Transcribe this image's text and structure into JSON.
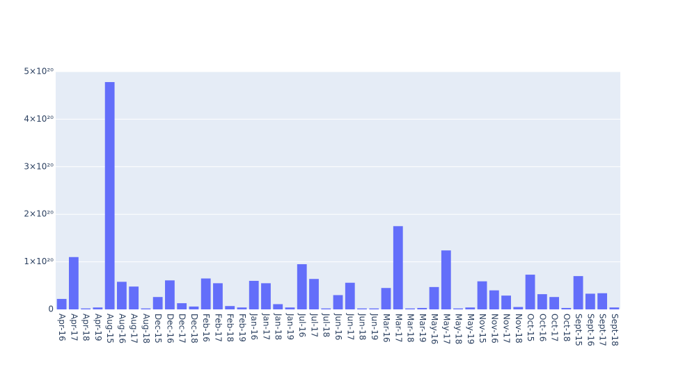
{
  "chart_data": {
    "type": "bar",
    "categories": [
      "Apr-16",
      "Apr-17",
      "Apr-18",
      "Apr-19",
      "Aug-15",
      "Aug-16",
      "Aug-17",
      "Aug-18",
      "Dec-15",
      "Dec-16",
      "Dec-17",
      "Dec-18",
      "Feb-16",
      "Feb-17",
      "Feb-18",
      "Feb-19",
      "Jan-16",
      "Jan-17",
      "Jan-18",
      "Jan-19",
      "Jul-16",
      "Jul-17",
      "Jul-18",
      "Jun-16",
      "Jun-17",
      "Jun-18",
      "Jun-19",
      "Mar-16",
      "Mar-17",
      "Mar-18",
      "Mar-19",
      "May-16",
      "May-17",
      "May-18",
      "May-19",
      "Nov-15",
      "Nov-16",
      "Nov-17",
      "Nov-18",
      "Oct-15",
      "Oct-16",
      "Oct-17",
      "Oct-18",
      "Sept-15",
      "Sept-16",
      "Sept-17",
      "Sept-18"
    ],
    "values": [
      2.2e+19,
      1.1e+20,
      2e+18,
      4e+18,
      4.78e+20,
      5.8e+19,
      4.8e+19,
      2e+18,
      2.6e+19,
      6.1e+19,
      1.3e+19,
      6e+18,
      6.5e+19,
      5.5e+19,
      7e+18,
      4e+18,
      6e+19,
      5.5e+19,
      1.1e+19,
      4e+18,
      9.5e+19,
      6.4e+19,
      2e+18,
      3e+19,
      5.6e+19,
      2e+18,
      2e+18,
      4.5e+19,
      1.75e+20,
      2e+18,
      3e+18,
      4.7e+19,
      1.24e+20,
      2e+18,
      4e+18,
      5.9e+19,
      4e+19,
      2.9e+19,
      5e+18,
      7.3e+19,
      3.2e+19,
      2.6e+19,
      3e+18,
      7e+19,
      3.3e+19,
      3.4e+19,
      4e+18
    ],
    "color": "#636efa",
    "ylim": [
      0,
      5e+20
    ],
    "yticks": [
      0,
      {
        "value": 1e+20,
        "label": "1×10²⁰"
      },
      {
        "value": 2e+20,
        "label": "2×10²⁰"
      },
      {
        "value": 3e+20,
        "label": "3×10²⁰"
      },
      {
        "value": 4e+20,
        "label": "4×10²⁰"
      },
      {
        "value": 5e+20,
        "label": "5×10²⁰"
      }
    ],
    "grid": true
  }
}
